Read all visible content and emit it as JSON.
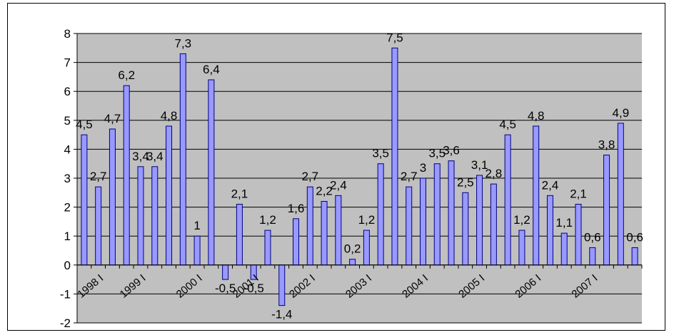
{
  "chart_data": {
    "type": "bar",
    "title": "",
    "xlabel": "",
    "ylabel": "",
    "ylim": [
      -2,
      8
    ],
    "yticks": [
      -2,
      -1,
      0,
      1,
      2,
      3,
      4,
      5,
      6,
      7,
      8
    ],
    "grid": true,
    "legend": "none",
    "colors": {
      "plot_bg": "#c0c0c0",
      "bar_fill": "#9999ff",
      "bar_stroke": "#000080",
      "gridline": "#000000"
    },
    "x_labels": [
      "1998 I",
      "1999 I",
      "2000  I",
      "2001 I",
      "2002 I",
      "2003 I",
      "2004 I",
      "2005 I",
      "2006 I",
      "2007 I"
    ],
    "x_label_bar_index": [
      1,
      4,
      8,
      12,
      16,
      20,
      24,
      28,
      32,
      36
    ],
    "values": [
      4.5,
      2.7,
      4.7,
      6.2,
      3.4,
      3.4,
      4.8,
      7.3,
      1,
      6.4,
      -0.5,
      2.1,
      -0.5,
      1.2,
      -1.4,
      1.6,
      2.7,
      2.2,
      2.4,
      0.2,
      1.2,
      3.5,
      7.5,
      2.7,
      3,
      3.5,
      3.6,
      2.5,
      3.1,
      2.8,
      4.5,
      1.2,
      4.8,
      2.4,
      1.1,
      2.1,
      0.6,
      3.8,
      4.9,
      0.6
    ],
    "data_labels": [
      "4,5",
      "2,7",
      "4,7",
      "6,2",
      "3,4",
      "3,4",
      "4,8",
      "7,3",
      "1",
      "6,4",
      "-0,5",
      "2,1",
      "-0,5",
      "1,2",
      "-1,4",
      "1,6",
      "2,7",
      "2,2",
      "2,4",
      "0,2",
      "1,2",
      "3,5",
      "7,5",
      "2,7",
      "3",
      "3,5",
      "3,6",
      "2,5",
      "3,1",
      "2,8",
      "4,5",
      "1,2",
      "4,8",
      "2,4",
      "1,1",
      "2,1",
      "0,6",
      "3,8",
      "4,9",
      "0,6"
    ]
  }
}
